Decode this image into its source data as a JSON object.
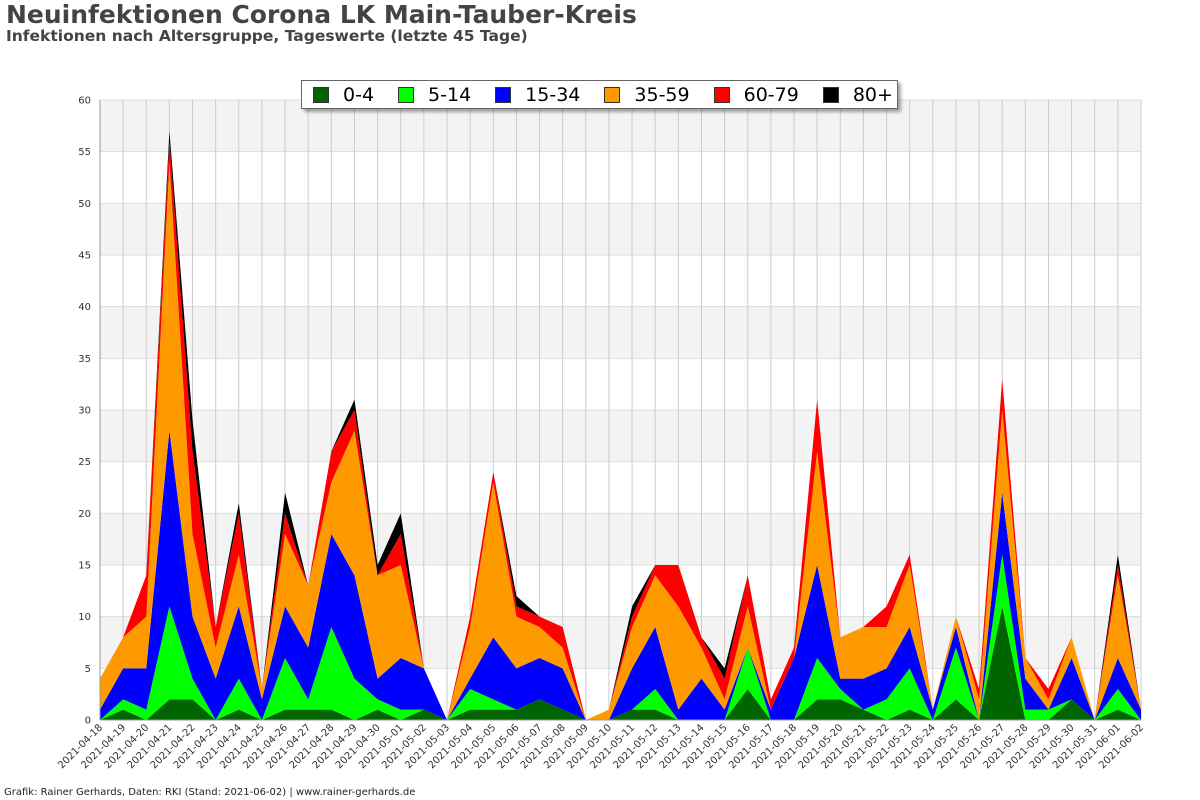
{
  "header": {
    "title": "Neuinfektionen Corona LK Main-Tauber-Kreis",
    "subtitle": "Infektionen nach Altersgruppe, Tageswerte (letzte 45 Tage)"
  },
  "footer": {
    "credit": "Grafik: Rainer Gerhards, Daten: RKI (Stand: 2021-06-02) | www.rainer-gerhards.de"
  },
  "chart_data": {
    "type": "area",
    "stacked": true,
    "title": "Neuinfektionen Corona LK Main-Tauber-Kreis",
    "subtitle": "Infektionen nach Altersgruppe, Tageswerte (letzte 45 Tage)",
    "xlabel": "",
    "ylabel": "",
    "ylim": [
      0,
      60
    ],
    "yticks": [
      0,
      5,
      10,
      15,
      20,
      25,
      30,
      35,
      40,
      45,
      50,
      55,
      60
    ],
    "grid": true,
    "legend_position": "top",
    "categories": [
      "2021-04-18",
      "2021-04-19",
      "2021-04-20",
      "2021-04-21",
      "2021-04-22",
      "2021-04-23",
      "2021-04-24",
      "2021-04-25",
      "2021-04-26",
      "2021-04-27",
      "2021-04-28",
      "2021-04-29",
      "2021-04-30",
      "2021-05-01",
      "2021-05-02",
      "2021-05-03",
      "2021-05-04",
      "2021-05-05",
      "2021-05-06",
      "2021-05-07",
      "2021-05-08",
      "2021-05-09",
      "2021-05-10",
      "2021-05-11",
      "2021-05-12",
      "2021-05-13",
      "2021-05-14",
      "2021-05-15",
      "2021-05-16",
      "2021-05-17",
      "2021-05-18",
      "2021-05-19",
      "2021-05-20",
      "2021-05-21",
      "2021-05-22",
      "2021-05-23",
      "2021-05-24",
      "2021-05-25",
      "2021-05-26",
      "2021-05-27",
      "2021-05-28",
      "2021-05-29",
      "2021-05-30",
      "2021-05-31",
      "2021-06-01",
      "2021-06-02"
    ],
    "series": [
      {
        "name": "0-4",
        "color": "#006400",
        "values": [
          0,
          1,
          0,
          2,
          2,
          0,
          1,
          0,
          1,
          1,
          1,
          0,
          1,
          0,
          1,
          0,
          1,
          1,
          1,
          2,
          1,
          0,
          0,
          1,
          1,
          0,
          0,
          0,
          3,
          0,
          0,
          2,
          2,
          1,
          0,
          1,
          0,
          2,
          0,
          11,
          0,
          0,
          2,
          0,
          1,
          0
        ]
      },
      {
        "name": "5-14",
        "color": "#00ff00",
        "values": [
          0,
          1,
          1,
          9,
          2,
          0,
          3,
          0,
          5,
          1,
          8,
          4,
          1,
          1,
          0,
          0,
          2,
          1,
          0,
          0,
          0,
          0,
          0,
          0,
          2,
          0,
          0,
          0,
          4,
          0,
          0,
          4,
          1,
          0,
          2,
          4,
          0,
          5,
          0,
          5,
          1,
          1,
          0,
          0,
          2,
          0
        ]
      },
      {
        "name": "15-34",
        "color": "#0000ff",
        "values": [
          1,
          3,
          4,
          17,
          6,
          4,
          7,
          2,
          5,
          5,
          9,
          10,
          2,
          5,
          4,
          0,
          1,
          6,
          4,
          4,
          4,
          0,
          0,
          4,
          6,
          1,
          4,
          1,
          0,
          1,
          6,
          9,
          1,
          3,
          3,
          4,
          1,
          2,
          0,
          6,
          3,
          0,
          4,
          0,
          3,
          1
        ]
      },
      {
        "name": "35-59",
        "color": "#ff9900",
        "values": [
          3,
          3,
          5,
          26,
          8,
          3,
          5,
          1,
          7,
          6,
          5,
          14,
          10,
          9,
          0,
          0,
          5,
          15,
          5,
          3,
          2,
          0,
          1,
          4,
          5,
          10,
          3,
          1,
          4,
          0,
          0,
          11,
          4,
          5,
          4,
          6,
          0,
          1,
          2,
          8,
          2,
          1,
          2,
          0,
          8,
          0
        ]
      },
      {
        "name": "60-79",
        "color": "#ff0000",
        "values": [
          0,
          0,
          4,
          2,
          8,
          2,
          4,
          0,
          2,
          0,
          3,
          2,
          0,
          3,
          0,
          0,
          1,
          1,
          1,
          1,
          2,
          0,
          0,
          1,
          1,
          4,
          1,
          2,
          3,
          1,
          1,
          5,
          0,
          0,
          2,
          1,
          0,
          0,
          1,
          3,
          0,
          1,
          0,
          0,
          1,
          0
        ]
      },
      {
        "name": "80+",
        "color": "#000000",
        "values": [
          0,
          0,
          0,
          1,
          3,
          0,
          1,
          0,
          2,
          0,
          0,
          1,
          1,
          2,
          0,
          0,
          0,
          0,
          1,
          0,
          0,
          0,
          0,
          1,
          0,
          0,
          0,
          1,
          0,
          0,
          0,
          0,
          0,
          0,
          0,
          0,
          0,
          0,
          0,
          0,
          0,
          0,
          0,
          0,
          1,
          0
        ]
      }
    ]
  }
}
